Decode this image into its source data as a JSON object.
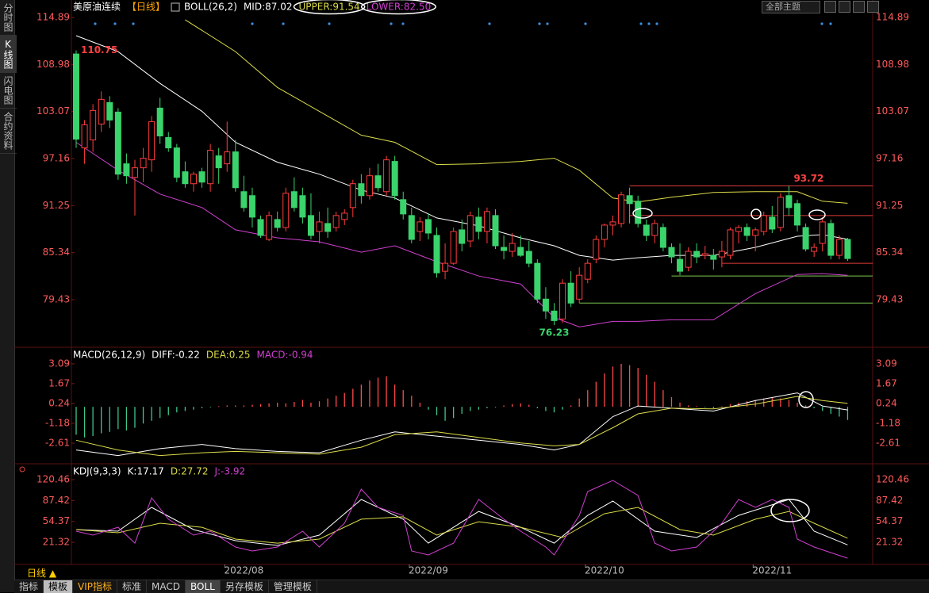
{
  "sidebar_tabs": [
    "分时图",
    "K线图",
    "闪电图",
    "合约资料"
  ],
  "theme_select": "全部主题",
  "period_selector": "日线 ▲",
  "bottom_tabs": [
    "指标",
    "模板",
    "VIP指标",
    "标准",
    "MACD",
    "BOLL",
    "另存模板",
    "管理模板"
  ],
  "chart_data": [
    {
      "type": "candlestick",
      "title": "美原油连续",
      "period": "【日线】",
      "indicator": "BOLL(26,2)",
      "ylim": [
        73.65,
        115.69
      ],
      "yticks": [
        114.89,
        108.98,
        103.07,
        97.16,
        91.25,
        85.34,
        79.43
      ],
      "up_color": "#ff3c3c",
      "down_color": "#3ad36c",
      "ohlc": [
        [
          110.3,
          110.75,
          98.5,
          99.6
        ],
        [
          98.5,
          102.0,
          96.5,
          101.4
        ],
        [
          99.5,
          104.0,
          98.0,
          103.2
        ],
        [
          101.5,
          105.6,
          100.5,
          104.6
        ],
        [
          104.2,
          105.0,
          101.0,
          102.0
        ],
        [
          103.0,
          103.5,
          94.5,
          95.2
        ],
        [
          96.5,
          97.8,
          94.0,
          95.0
        ],
        [
          94.8,
          97.0,
          90.0,
          96.0
        ],
        [
          96.0,
          98.5,
          94.2,
          97.2
        ],
        [
          97.0,
          102.5,
          95.5,
          101.8
        ],
        [
          103.5,
          104.8,
          99.0,
          100.0
        ],
        [
          99.8,
          100.5,
          98.0,
          98.5
        ],
        [
          98.5,
          99.0,
          94.2,
          94.8
        ],
        [
          95.5,
          96.8,
          93.5,
          94.0
        ],
        [
          94.0,
          95.5,
          93.0,
          95.2
        ],
        [
          95.5,
          96.0,
          93.5,
          94.2
        ],
        [
          94.0,
          99.0,
          93.0,
          98.2
        ],
        [
          97.5,
          98.5,
          94.0,
          96.0
        ],
        [
          96.5,
          101.8,
          95.5,
          98.0
        ],
        [
          98.0,
          99.5,
          93.0,
          93.5
        ],
        [
          93.0,
          95.0,
          90.5,
          91.0
        ],
        [
          92.5,
          93.5,
          88.5,
          89.8
        ],
        [
          89.5,
          90.0,
          87.2,
          87.5
        ],
        [
          87.0,
          90.5,
          86.8,
          90.0
        ],
        [
          89.5,
          90.5,
          88.0,
          88.5
        ],
        [
          88.5,
          93.5,
          88.0,
          92.8
        ],
        [
          93.0,
          94.8,
          90.5,
          91.0
        ],
        [
          92.5,
          93.5,
          89.0,
          89.8
        ],
        [
          90.0,
          92.8,
          87.0,
          87.5
        ],
        [
          88.0,
          90.5,
          86.5,
          89.2
        ],
        [
          89.0,
          91.0,
          87.2,
          88.0
        ],
        [
          88.5,
          90.5,
          88.0,
          90.0
        ],
        [
          89.5,
          90.8,
          88.8,
          90.3
        ],
        [
          91.0,
          94.5,
          89.8,
          94.0
        ],
        [
          94.0,
          95.2,
          91.5,
          92.5
        ],
        [
          92.5,
          96.0,
          92.0,
          95.0
        ],
        [
          95.0,
          96.5,
          93.0,
          93.5
        ],
        [
          93.0,
          97.5,
          92.5,
          97.0
        ],
        [
          96.8,
          97.5,
          92.0,
          92.5
        ],
        [
          92.0,
          93.0,
          89.5,
          90.2
        ],
        [
          90.0,
          91.0,
          86.5,
          87.0
        ],
        [
          88.0,
          89.8,
          86.8,
          89.2
        ],
        [
          89.5,
          90.2,
          87.0,
          87.8
        ],
        [
          87.5,
          88.5,
          82.2,
          82.8
        ],
        [
          83.0,
          86.5,
          82.0,
          84.0
        ],
        [
          84.0,
          88.5,
          83.8,
          88.0
        ],
        [
          88.2,
          89.5,
          85.5,
          86.5
        ],
        [
          86.8,
          90.5,
          86.0,
          90.0
        ],
        [
          89.8,
          91.0,
          87.0,
          88.0
        ],
        [
          88.0,
          91.0,
          86.5,
          90.5
        ],
        [
          90.0,
          90.8,
          85.8,
          86.2
        ],
        [
          86.0,
          87.5,
          84.5,
          85.6
        ],
        [
          85.5,
          87.8,
          84.8,
          86.5
        ],
        [
          86.0,
          87.5,
          84.8,
          85.0
        ],
        [
          85.5,
          86.8,
          83.5,
          84.0
        ],
        [
          84.0,
          84.5,
          79.0,
          79.5
        ],
        [
          79.5,
          81.0,
          77.0,
          78.0
        ],
        [
          78.0,
          79.0,
          76.23,
          76.8
        ],
        [
          77.0,
          82.0,
          76.5,
          81.5
        ],
        [
          81.5,
          83.0,
          78.5,
          79.0
        ],
        [
          79.5,
          83.5,
          79.0,
          82.5
        ],
        [
          82.0,
          84.5,
          81.5,
          84.0
        ],
        [
          84.5,
          87.5,
          84.0,
          87.0
        ],
        [
          87.0,
          89.0,
          86.0,
          88.8
        ],
        [
          88.8,
          90.0,
          87.5,
          89.2
        ],
        [
          89.0,
          93.0,
          88.5,
          92.6
        ],
        [
          92.5,
          93.5,
          89.0,
          91.5
        ],
        [
          91.8,
          92.5,
          88.5,
          89.0
        ],
        [
          88.8,
          89.5,
          86.8,
          87.5
        ],
        [
          87.5,
          89.5,
          86.5,
          89.0
        ],
        [
          88.5,
          89.0,
          85.5,
          86.0
        ],
        [
          86.0,
          86.5,
          84.0,
          84.8
        ],
        [
          84.5,
          86.5,
          82.5,
          83.0
        ],
        [
          83.5,
          86.0,
          83.0,
          85.5
        ],
        [
          85.5,
          86.5,
          84.0,
          84.8
        ],
        [
          85.0,
          86.2,
          84.5,
          85.2
        ],
        [
          85.0,
          85.8,
          83.2,
          84.5
        ],
        [
          84.8,
          86.8,
          83.5,
          85.5
        ],
        [
          85.0,
          88.5,
          84.5,
          88.2
        ],
        [
          88.0,
          88.8,
          86.5,
          88.5
        ],
        [
          88.5,
          89.0,
          86.8,
          87.5
        ],
        [
          87.5,
          88.5,
          85.5,
          88.2
        ],
        [
          88.0,
          90.5,
          87.5,
          90.0
        ],
        [
          89.8,
          91.2,
          87.8,
          88.3
        ],
        [
          88.5,
          92.8,
          88.0,
          92.3
        ],
        [
          92.5,
          93.72,
          90.0,
          91.0
        ],
        [
          91.5,
          92.0,
          88.0,
          88.8
        ],
        [
          88.5,
          89.0,
          85.5,
          85.8
        ],
        [
          85.5,
          86.5,
          84.8,
          86.0
        ],
        [
          86.5,
          89.8,
          85.5,
          89.2
        ],
        [
          89.0,
          89.5,
          84.5,
          85.0
        ],
        [
          85.0,
          87.5,
          84.5,
          87.0
        ],
        [
          87.0,
          87.2,
          84.3,
          84.6
        ]
      ],
      "series": [
        {
          "label": "MID:87.02",
          "color": "#ffffff",
          "x": [
            0,
            5,
            10,
            15,
            19,
            24,
            29,
            34,
            38,
            43,
            48,
            53,
            57,
            60,
            64,
            67,
            71,
            76,
            81,
            86,
            89,
            92
          ],
          "values": [
            112.6,
            110.6,
            106.6,
            103.1,
            99.2,
            96.7,
            95.2,
            93.2,
            92.2,
            89.7,
            88.7,
            87.2,
            86.2,
            85.0,
            84.4,
            84.7,
            85.0,
            85.0,
            86.0,
            87.4,
            87.6,
            87.02
          ]
        },
        {
          "label": "UPPER:91.54",
          "color": "#dcdc4a",
          "x": [
            13,
            19,
            24,
            29,
            34,
            38,
            43,
            48,
            53,
            57,
            60,
            64,
            67,
            71,
            76,
            81,
            86,
            89,
            92
          ],
          "values": [
            114.6,
            110.6,
            106.1,
            103.1,
            100.1,
            99.2,
            96.4,
            96.5,
            96.8,
            97.2,
            95.7,
            92.2,
            91.7,
            92.3,
            92.9,
            93.0,
            93.0,
            91.8,
            91.54
          ]
        },
        {
          "label": "LOWER:82.50",
          "color": "#d040d0",
          "x": [
            0,
            5,
            10,
            15,
            19,
            24,
            29,
            34,
            38,
            43,
            48,
            53,
            57,
            60,
            64,
            67,
            71,
            76,
            81,
            86,
            89,
            92
          ],
          "values": [
            99.2,
            95.7,
            92.7,
            91.0,
            88.2,
            87.2,
            86.7,
            85.4,
            86.2,
            84.2,
            82.4,
            81.4,
            77.2,
            76.0,
            76.7,
            76.7,
            76.9,
            76.9,
            80.2,
            82.6,
            82.7,
            82.5
          ]
        }
      ],
      "annotations": [
        {
          "index": 0,
          "value": 110.75,
          "position": "right",
          "color": "#ff4040"
        },
        {
          "index": 57,
          "value": 76.23,
          "position": "below",
          "color": "#3ad36c"
        },
        {
          "index": 85,
          "value": 93.72,
          "position": "above",
          "color": "#ff4040"
        }
      ],
      "drawn_lines": [
        {
          "value": 93.72,
          "from": 66,
          "color": "#e03a3a"
        },
        {
          "value": 90.0,
          "from": 66,
          "color": "#e03a3a"
        },
        {
          "value": 84.0,
          "from": 77,
          "color": "#e03a3a"
        },
        {
          "value": 82.4,
          "from": 71,
          "color": "#7ec850"
        },
        {
          "value": 79.0,
          "from": 60,
          "color": "#7ec850"
        }
      ]
    },
    {
      "type": "macd",
      "title": "MACD(26,12,9)",
      "ylim": [
        -4.09,
        3.77
      ],
      "yticks": [
        3.09,
        1.67,
        0.24,
        -1.18,
        -2.61
      ],
      "series": [
        {
          "label": "DIFF:-0.22",
          "color": "#ffffff",
          "x": [
            0,
            5,
            10,
            15,
            19,
            24,
            29,
            34,
            38,
            43,
            48,
            53,
            57,
            60,
            64,
            67,
            71,
            76,
            81,
            86,
            89,
            92
          ],
          "values": [
            -3.1,
            -3.5,
            -3.0,
            -2.7,
            -3.0,
            -3.2,
            -3.3,
            -2.4,
            -1.8,
            -2.1,
            -2.4,
            -2.7,
            -3.1,
            -2.7,
            -0.7,
            0.06,
            -0.1,
            -0.3,
            0.45,
            1.0,
            0.06,
            -0.22
          ]
        },
        {
          "label": "DEA:0.25",
          "color": "#dcdc4a",
          "x": [
            0,
            5,
            10,
            15,
            19,
            24,
            29,
            34,
            38,
            43,
            48,
            53,
            57,
            60,
            64,
            67,
            71,
            76,
            81,
            86,
            89,
            92
          ],
          "values": [
            -2.4,
            -3.1,
            -3.5,
            -3.3,
            -3.2,
            -3.3,
            -3.4,
            -2.9,
            -2.0,
            -1.8,
            -2.2,
            -2.6,
            -2.8,
            -2.7,
            -1.5,
            -0.5,
            -0.1,
            -0.15,
            0.2,
            0.75,
            0.45,
            0.25
          ]
        }
      ],
      "histogram": {
        "label": "MACD:-0.94",
        "color": "#d040d0",
        "up_color": "#ff4a4a",
        "down_color": "#3ec78a",
        "values": [
          -2.0,
          -2.2,
          -2.1,
          -1.9,
          -1.8,
          -1.6,
          -1.7,
          -1.5,
          -1.2,
          -1.0,
          -0.8,
          -0.6,
          -0.4,
          -0.3,
          -0.2,
          -0.1,
          -0.05,
          0.05,
          0.1,
          0.1,
          0.1,
          0.15,
          0.2,
          0.25,
          0.3,
          0.25,
          0.35,
          0.5,
          0.3,
          0.4,
          0.6,
          0.8,
          1.0,
          1.3,
          1.6,
          1.9,
          2.1,
          2.2,
          1.6,
          1.2,
          0.8,
          0.3,
          -0.2,
          -0.6,
          -1.0,
          -0.8,
          -0.5,
          -0.3,
          -0.2,
          -0.1,
          -0.05,
          0.1,
          0.2,
          0.25,
          0.15,
          -0.1,
          -0.3,
          -0.4,
          -0.2,
          0.1,
          0.6,
          1.2,
          1.8,
          2.4,
          2.9,
          3.09,
          3.0,
          2.8,
          2.3,
          1.8,
          1.2,
          0.7,
          0.3,
          0.1,
          0.05,
          -0.05,
          -0.1,
          0.05,
          0.2,
          0.3,
          0.4,
          0.5,
          0.6,
          0.7,
          0.6,
          0.5,
          0.3,
          0.1,
          -0.1,
          -0.3,
          -0.5,
          -0.7,
          -0.94
        ]
      }
    },
    {
      "type": "line",
      "title": "KDJ(9,3,3)",
      "ylim": [
        -13.8,
        139.3
      ],
      "yticks": [
        120.46,
        87.42,
        54.37,
        21.32
      ],
      "xticks": [
        {
          "value": 20,
          "label": "2022/08"
        },
        {
          "value": 42,
          "label": "2022/09"
        },
        {
          "value": 63,
          "label": "2022/10"
        },
        {
          "value": 83,
          "label": "2022/11"
        }
      ],
      "series": [
        {
          "label": "K:17.17",
          "color": "#ffffff",
          "x": [
            0,
            5,
            9,
            14,
            19,
            24,
            29,
            34,
            39,
            42,
            48,
            53,
            57,
            61,
            64,
            69,
            74,
            79,
            85,
            88,
            92
          ],
          "values": [
            41.4,
            38.9,
            76.5,
            41.4,
            23.8,
            16.3,
            32.6,
            89.1,
            57.8,
            20,
            70.2,
            45.1,
            20,
            63.9,
            86.6,
            38.9,
            28.9,
            63.9,
            89.1,
            38.9,
            17.17
          ]
        },
        {
          "label": "D:27.72",
          "color": "#dcdc4a",
          "x": [
            0,
            5,
            10,
            15,
            19,
            24,
            29,
            34,
            39,
            43,
            48,
            53,
            58,
            63,
            67,
            72,
            76,
            81,
            85,
            88,
            92
          ],
          "values": [
            41.4,
            36.4,
            51.4,
            45.1,
            26.3,
            20,
            26.3,
            57.8,
            61.6,
            32.6,
            53.9,
            45.1,
            28.9,
            66.5,
            76.5,
            41.4,
            32.6,
            57.8,
            70.2,
            51.4,
            27.72
          ]
        },
        {
          "label": "J:-3.92",
          "color": "#d040d0",
          "x": [
            0,
            2,
            5,
            7,
            9,
            11,
            14,
            16,
            19,
            21,
            24,
            27,
            29,
            32,
            34,
            36,
            39,
            40,
            42,
            45,
            48,
            51,
            53,
            56,
            57,
            60,
            61,
            64,
            67,
            69,
            71,
            74,
            77,
            79,
            81,
            83,
            85,
            86,
            88,
            92
          ],
          "values": [
            38.9,
            32.6,
            45.1,
            20,
            91.6,
            57.8,
            32.6,
            38.9,
            13.8,
            7.5,
            13.8,
            38.9,
            13.8,
            51.4,
            105.4,
            76.5,
            63.9,
            7.5,
            1.2,
            20,
            89.1,
            57.8,
            38.9,
            13.8,
            1.2,
            63.9,
            101.6,
            119.2,
            95.4,
            20,
            7.5,
            13.8,
            51.4,
            89.1,
            76.5,
            89.1,
            76.5,
            26.3,
            13.8,
            -3.92
          ]
        }
      ]
    }
  ]
}
